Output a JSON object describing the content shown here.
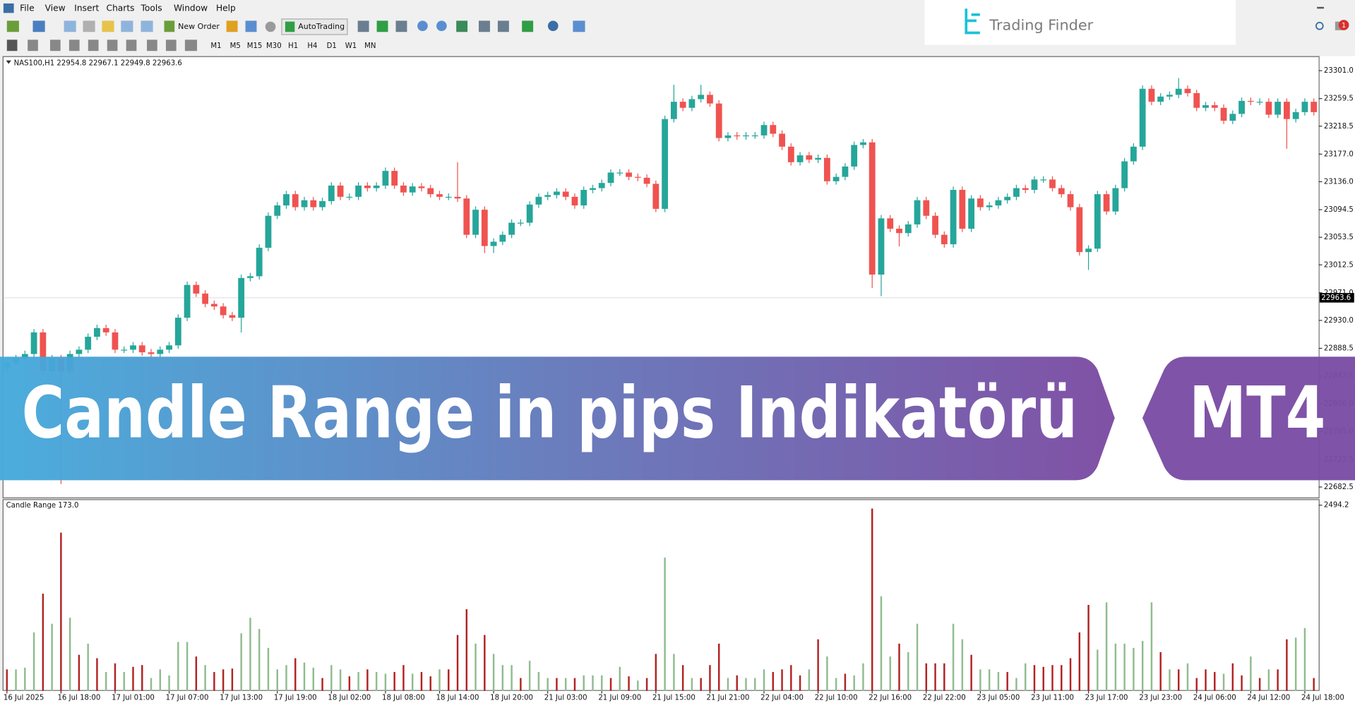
{
  "menu": [
    "File",
    "View",
    "Insert",
    "Charts",
    "Tools",
    "Window",
    "Help"
  ],
  "toolbar": {
    "new_order": "New Order",
    "auto_trading": "AutoTrading",
    "timeframes": [
      "M1",
      "M5",
      "M15",
      "M30",
      "H1",
      "H4",
      "D1",
      "W1",
      "MN"
    ]
  },
  "logo": "Trading Finder",
  "notification_count": 1,
  "banner": {
    "title": "Candle Range in pips Indikatörü",
    "platform": "MT4"
  },
  "chart_data": [
    {
      "type": "candlestick",
      "title": "NAS100,H1  22954.8 22967.1 22949.8 22963.6",
      "up_color": "#26a69a",
      "down_color": "#ef5350",
      "bid": 22963.6,
      "ylim": [
        22667,
        23320
      ],
      "yticks": [
        {
          "value": 23301,
          "label": "23301.0"
        },
        23259.5,
        23218.5,
        {
          "value": 23177,
          "label": "23177.0"
        },
        {
          "value": 23136,
          "label": "23136.0"
        },
        23094.5,
        23053.5,
        23012.5,
        {
          "value": 22971,
          "label": "22971.0"
        },
        {
          "value": 22930,
          "label": "22930.0"
        },
        22888.5,
        22847.5,
        {
          "value": 22806,
          "label": "22806.0"
        },
        {
          "value": 22765,
          "label": "22765.0"
        },
        22723.5,
        22682.5
      ],
      "open": [
        22860.0,
        22867.2,
        22873.7,
        22880.1,
        22912.2,
        22854.4,
        22873.7,
        22854.4,
        22880.1,
        22886.5,
        22905.7,
        22918.6,
        22912.2,
        22886.5,
        22886.5,
        22892.9,
        22882.6,
        22880.1,
        22886.5,
        22892.9,
        22934.0,
        22982.7,
        22969.9,
        22954.5,
        22950.7,
        22937.8,
        22934.0,
        22993.0,
        22995.6,
        23037.9,
        23085.4,
        23100.8,
        23117.5,
        23098.2,
        23108.5,
        23098.2,
        23107.2,
        23130.3,
        23113.6,
        23113.6,
        23130.3,
        23126.5,
        23130.3,
        23152.1,
        23130.3,
        23120.1,
        23129.0,
        23126.5,
        23117.5,
        23113.6,
        23113.6,
        23111.1,
        23057.2,
        23094.4,
        23040.5,
        23046.9,
        23057.2,
        23075.1,
        23075.1,
        23102.1,
        23113.6,
        23116.2,
        23121.3,
        23113.6,
        23100.8,
        23123.9,
        23126.5,
        23134.2,
        23149.6,
        23149.6,
        23143.2,
        23141.9,
        23132.9,
        23095.7,
        23229.1,
        23254.8,
        23245.8,
        23258.7,
        23265.1,
        23252.2,
        23200.9,
        23204.8,
        23203.5,
        23204.8,
        23204.8,
        23220.2,
        23207.3,
        23188.1,
        23165.0,
        23175.2,
        23168.8,
        23171.4,
        23136.7,
        23143.2,
        23158.6,
        23190.6,
        23194.5,
        22998.1,
        23081.6,
        23066.2,
        23059.7,
        23072.6,
        23108.5,
        23085.4,
        23057.2,
        23043.1,
        23123.9,
        23066.2,
        23111.1,
        23098.2,
        23100.8,
        23108.5,
        23113.6,
        23126.5,
        23123.9,
        23139.3,
        23139.3,
        23126.5,
        23117.5,
        23098.2,
        23031.5,
        23036.6,
        23117.5,
        23091.8,
        23126.5,
        23166.3,
        23188.1,
        23274.1,
        23254.8,
        23262.5,
        23265.1,
        23274.1,
        23267.6,
        23245.8,
        23249.7,
        23245.8,
        23226.6,
        23236.8,
        23256.1,
        23254.8,
        23254.8,
        23235.6,
        23254.8,
        23229.1,
        23239.4,
        23254.8
      ],
      "high": [
        22872.2,
        22878.7,
        22885.1,
        22917.2,
        22917.2,
        22878.7,
        22878.7,
        22885.1,
        22891.5,
        22910.7,
        22923.6,
        22923.6,
        22917.2,
        22891.5,
        22897.9,
        22897.9,
        22887.6,
        22891.5,
        22897.9,
        22939.0,
        22987.7,
        22987.7,
        22974.9,
        22959.5,
        22955.7,
        22942.8,
        22998.0,
        23000.6,
        23042.9,
        23090.4,
        23105.8,
        23122.5,
        23122.5,
        23113.5,
        23113.5,
        23112.2,
        23135.3,
        23135.3,
        23118.6,
        23135.3,
        23135.3,
        23135.3,
        23157.1,
        23157.1,
        23135.3,
        23134.0,
        23134.0,
        23131.5,
        23122.5,
        23118.6,
        23165.0,
        23116.1,
        23099.4,
        23099.4,
        23051.9,
        23062.2,
        23080.1,
        23080.1,
        23107.1,
        23118.6,
        23121.2,
        23126.3,
        23126.3,
        23118.6,
        23128.9,
        23131.5,
        23139.2,
        23154.6,
        23154.6,
        23154.6,
        23148.2,
        23146.9,
        23137.9,
        23234.1,
        23280.0,
        23259.8,
        23263.7,
        23280.0,
        23270.1,
        23257.2,
        23209.8,
        23209.8,
        23209.8,
        23209.8,
        23225.2,
        23225.2,
        23212.3,
        23193.1,
        23180.2,
        23180.2,
        23176.4,
        23176.4,
        23148.2,
        23163.6,
        23195.6,
        23199.5,
        23199.5,
        23086.6,
        23086.6,
        23071.2,
        23077.6,
        23113.5,
        23113.5,
        23090.4,
        23062.2,
        23128.9,
        23128.9,
        23116.1,
        23116.1,
        23105.8,
        23113.5,
        23118.6,
        23131.5,
        23131.5,
        23144.3,
        23144.3,
        23144.3,
        23131.5,
        23122.5,
        23103.2,
        23041.6,
        23122.5,
        23122.5,
        23131.5,
        23171.3,
        23193.1,
        23279.1,
        23279.1,
        23267.5,
        23270.1,
        23290.0,
        23279.1,
        23272.6,
        23254.7,
        23254.7,
        23250.8,
        23241.8,
        23261.1,
        23261.1,
        23259.8,
        23259.8,
        23259.8,
        23259.8,
        23244.4,
        23259.8,
        23259.8
      ],
      "low": [
        22855.0,
        22862.2,
        22868.7,
        22875.1,
        22849.4,
        22849.4,
        22687.0,
        22849.4,
        22875.1,
        22881.5,
        22900.7,
        22907.2,
        22881.5,
        22881.5,
        22881.5,
        22877.6,
        22875.1,
        22875.1,
        22881.5,
        22887.9,
        22929.0,
        22964.9,
        22949.5,
        22945.7,
        22932.8,
        22929.0,
        22912.0,
        22988.0,
        22990.6,
        23032.9,
        23080.4,
        23095.8,
        23093.2,
        23093.2,
        23093.2,
        23093.2,
        23102.2,
        23108.6,
        23108.6,
        23108.6,
        23121.5,
        23121.5,
        23125.3,
        23125.3,
        23115.1,
        23115.1,
        23121.5,
        23112.5,
        23108.6,
        23108.6,
        23106.1,
        23052.2,
        23052.2,
        23030.0,
        23030.0,
        23041.9,
        23052.2,
        23070.1,
        23070.1,
        23097.1,
        23108.6,
        23111.2,
        23108.6,
        23095.8,
        23095.8,
        23118.9,
        23121.5,
        23129.2,
        23144.6,
        23138.2,
        23136.9,
        23127.9,
        23090.7,
        23090.7,
        23224.1,
        23240.8,
        23240.8,
        23253.7,
        23247.2,
        23195.9,
        23195.9,
        23198.5,
        23198.5,
        23199.8,
        23199.8,
        23202.3,
        23183.1,
        23160.0,
        23160.0,
        23163.8,
        23163.8,
        23131.7,
        23131.7,
        23138.2,
        23153.6,
        23185.6,
        22978.0,
        22966.0,
        23061.2,
        23040.0,
        23054.7,
        23067.6,
        23080.4,
        23052.2,
        23038.1,
        23038.1,
        23061.2,
        23061.2,
        23093.2,
        23093.2,
        23095.8,
        23103.5,
        23108.6,
        23118.9,
        23118.9,
        23134.3,
        23121.5,
        23112.5,
        23093.2,
        23026.5,
        23005.0,
        23031.6,
        23086.8,
        23086.8,
        23121.5,
        23161.3,
        23183.1,
        23249.8,
        23249.8,
        23257.5,
        23260.1,
        23262.6,
        23240.8,
        23240.8,
        23240.8,
        23221.6,
        23221.6,
        23231.8,
        23249.8,
        23249.8,
        23230.6,
        23230.6,
        23185.0,
        23224.1,
        23234.4,
        23234.4
      ],
      "close": [
        22867.2,
        22873.7,
        22880.1,
        22912.2,
        22854.4,
        22873.7,
        22854.4,
        22880.1,
        22886.5,
        22905.7,
        22918.6,
        22912.2,
        22886.5,
        22886.5,
        22892.9,
        22882.6,
        22880.1,
        22886.5,
        22892.9,
        22934.0,
        22982.7,
        22969.9,
        22954.5,
        22950.7,
        22937.8,
        22934.0,
        22993.0,
        22995.6,
        23037.9,
        23085.4,
        23100.8,
        23117.5,
        23098.2,
        23108.5,
        23098.2,
        23107.2,
        23130.3,
        23113.6,
        23113.6,
        23130.3,
        23126.5,
        23130.3,
        23152.1,
        23130.3,
        23120.1,
        23129.0,
        23126.5,
        23117.5,
        23113.6,
        23113.6,
        23111.1,
        23057.2,
        23094.4,
        23040.5,
        23046.9,
        23057.2,
        23075.1,
        23075.1,
        23102.1,
        23113.6,
        23116.2,
        23121.3,
        23113.6,
        23100.8,
        23123.9,
        23126.5,
        23134.2,
        23149.6,
        23149.6,
        23143.2,
        23141.9,
        23132.9,
        23095.7,
        23229.1,
        23254.8,
        23245.8,
        23258.7,
        23265.1,
        23252.2,
        23200.9,
        23204.8,
        23203.5,
        23204.8,
        23204.8,
        23220.2,
        23207.3,
        23188.1,
        23165.0,
        23175.2,
        23168.8,
        23171.4,
        23136.7,
        23143.2,
        23158.6,
        23190.6,
        23194.5,
        22998.1,
        23081.6,
        23066.2,
        23059.7,
        23072.6,
        23108.5,
        23085.4,
        23057.2,
        23043.1,
        23123.9,
        23066.2,
        23111.1,
        23098.2,
        23100.8,
        23108.5,
        23113.6,
        23126.5,
        23123.9,
        23139.3,
        23139.3,
        23126.5,
        23117.5,
        23098.2,
        23031.5,
        23036.6,
        23117.5,
        23091.8,
        23126.5,
        23166.3,
        23188.1,
        23274.1,
        23254.8,
        23262.5,
        23265.1,
        23274.1,
        23267.6,
        23245.8,
        23249.7,
        23245.8,
        23226.6,
        23236.8,
        23256.1,
        23254.8,
        23254.8,
        23235.6,
        23254.8,
        23229.1,
        23239.4,
        23254.8,
        23239.4
      ]
    },
    {
      "type": "bar",
      "title": "Candle Range 173.0",
      "ylim": [
        0,
        2563
      ],
      "yticks": [
        2494.2
      ],
      "categories": [
        "16 Jul 2025",
        null,
        null,
        null,
        null,
        null,
        "16 Jul 18:00",
        null,
        null,
        null,
        null,
        null,
        "17 Jul 01:00",
        null,
        null,
        null,
        null,
        null,
        "17 Jul 07:00",
        null,
        null,
        null,
        null,
        null,
        "17 Jul 13:00",
        null,
        null,
        null,
        null,
        null,
        "17 Jul 19:00",
        null,
        null,
        null,
        null,
        null,
        "18 Jul 02:00",
        null,
        null,
        null,
        null,
        null,
        "18 Jul 08:00",
        null,
        null,
        null,
        null,
        null,
        "18 Jul 14:00",
        null,
        null,
        null,
        null,
        null,
        "18 Jul 20:00",
        null,
        null,
        null,
        null,
        null,
        "21 Jul 03:00",
        null,
        null,
        null,
        null,
        null,
        "21 Jul 09:00",
        null,
        null,
        null,
        null,
        null,
        "21 Jul 15:00",
        null,
        null,
        null,
        null,
        null,
        "21 Jul 21:00",
        null,
        null,
        null,
        null,
        null,
        "22 Jul 04:00",
        null,
        null,
        null,
        null,
        null,
        "22 Jul 10:00",
        null,
        null,
        null,
        null,
        null,
        "22 Jul 16:00",
        null,
        null,
        null,
        null,
        null,
        "22 Jul 22:00",
        null,
        null,
        null,
        null,
        null,
        "23 Jul 05:00",
        null,
        null,
        null,
        null,
        null,
        "23 Jul 11:00",
        null,
        null,
        null,
        null,
        null,
        "23 Jul 17:00",
        null,
        null,
        null,
        null,
        null,
        "23 Jul 23:00",
        null,
        null,
        null,
        null,
        null,
        "24 Jul 06:00",
        null,
        null,
        null,
        null,
        null,
        "24 Jul 12:00",
        null,
        null,
        null,
        null,
        null,
        "24 Jul 18:00",
        null
      ],
      "series": [
        {
          "color": "#8fbc8f",
          "values": [
            null,
            289,
            312,
            785,
            null,
            901,
            null,
            982,
            null,
            635,
            null,
            254,
            null,
            254,
            null,
            null,
            173,
            289,
            208,
            658,
            658,
            null,
            347,
            null,
            null,
            null,
            774,
            982,
            832,
            578,
            289,
            347,
            null,
            381,
            312,
            null,
            347,
            289,
            null,
            254,
            null,
            254,
            231,
            null,
            null,
            231,
            null,
            null,
            289,
            null,
            null,
            null,
            635,
            null,
            497,
            347,
            347,
            null,
            404,
            254,
            173,
            null,
            173,
            null,
            208,
            208,
            208,
            null,
            323,
            null,
            139,
            null,
            null,
            1790,
            497,
            null,
            173,
            null,
            null,
            null,
            173,
            null,
            173,
            173,
            289,
            null,
            null,
            null,
            null,
            289,
            null,
            462,
            173,
            null,
            208,
            370,
            null,
            1271,
            462,
            null,
            520,
            901,
            null,
            null,
            null,
            901,
            693,
            null,
            289,
            289,
            254,
            null,
            173,
            370,
            null,
            null,
            null,
            null,
            null,
            null,
            null,
            554,
            1190,
            635,
            635,
            578,
            670,
            1190,
            null,
            289,
            null,
            370,
            null,
            null,
            null,
            231,
            null,
            null,
            462,
            null,
            289,
            null,
            null,
            716,
            843,
            null
          ]
        },
        {
          "color": "#b22222",
          "values": [
            289,
            null,
            null,
            null,
            1305,
            null,
            2125,
            null,
            485,
            null,
            439,
            null,
            370,
            null,
            323,
            347,
            null,
            null,
            null,
            null,
            null,
            462,
            null,
            254,
            289,
            300,
            null,
            null,
            null,
            null,
            null,
            null,
            439,
            null,
            null,
            173,
            null,
            null,
            196,
            null,
            289,
            null,
            null,
            254,
            347,
            null,
            254,
            196,
            null,
            289,
            751,
            1097,
            null,
            751,
            null,
            null,
            null,
            173,
            null,
            null,
            null,
            173,
            null,
            173,
            null,
            null,
            null,
            173,
            null,
            196,
            null,
            173,
            497,
            null,
            null,
            347,
            null,
            173,
            347,
            635,
            null,
            208,
            null,
            null,
            null,
            254,
            289,
            347,
            208,
            null,
            693,
            null,
            null,
            231,
            null,
            null,
            2449,
            null,
            null,
            635,
            null,
            null,
            370,
            370,
            370,
            null,
            null,
            485,
            null,
            null,
            null,
            254,
            null,
            null,
            347,
            323,
            347,
            347,
            439,
            785,
            1155,
            null,
            null,
            null,
            null,
            null,
            null,
            null,
            520,
            null,
            289,
            null,
            173,
            289,
            254,
            null,
            370,
            208,
            null,
            173,
            null,
            289,
            693,
            null,
            null,
            173
          ]
        }
      ]
    }
  ]
}
